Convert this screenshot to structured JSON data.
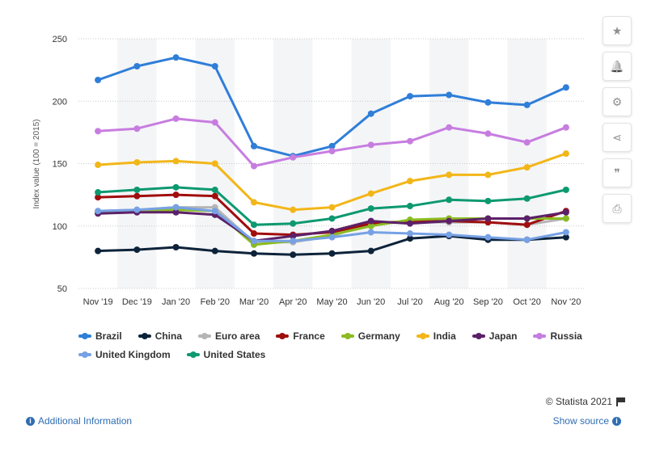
{
  "chart_data": {
    "type": "line",
    "title": "",
    "xlabel": "",
    "ylabel": "Index value (100 = 2015)",
    "categories": [
      "Nov '19",
      "Dec '19",
      "Jan '20",
      "Feb '20",
      "Mar '20",
      "Apr '20",
      "May '20",
      "Jun '20",
      "Jul '20",
      "Aug '20",
      "Sep '20",
      "Oct '20",
      "Nov '20"
    ],
    "ylim": [
      50,
      250
    ],
    "yticks": [
      50,
      100,
      150,
      200,
      250
    ],
    "grid": true,
    "legend_position": "bottom",
    "series": [
      {
        "name": "Brazil",
        "color": "#2f7ed8",
        "values": [
          217,
          228,
          235,
          228,
          164,
          156,
          164,
          190,
          204,
          205,
          199,
          197,
          211
        ]
      },
      {
        "name": "China",
        "color": "#0d233a",
        "values": [
          80,
          81,
          83,
          80,
          78,
          77,
          78,
          80,
          90,
          92,
          89,
          89,
          91
        ]
      },
      {
        "name": "Euro area",
        "color": "#b5b5b5",
        "values": [
          112,
          113,
          115,
          115,
          87,
          87,
          92,
          102,
          103,
          103,
          103,
          101,
          106
        ]
      },
      {
        "name": "France",
        "color": "#a00d0d",
        "values": [
          123,
          124,
          125,
          124,
          94,
          93,
          95,
          102,
          104,
          104,
          103,
          101,
          112
        ]
      },
      {
        "name": "Germany",
        "color": "#8bbc21",
        "values": [
          111,
          112,
          113,
          112,
          85,
          88,
          93,
          100,
          105,
          106,
          106,
          106,
          106
        ]
      },
      {
        "name": "India",
        "color": "#f2b619",
        "values": [
          149,
          151,
          152,
          150,
          119,
          113,
          115,
          126,
          136,
          141,
          141,
          147,
          158
        ]
      },
      {
        "name": "Japan",
        "color": "#5c2069",
        "values": [
          110,
          111,
          111,
          109,
          88,
          92,
          96,
          104,
          102,
          104,
          106,
          106,
          111
        ]
      },
      {
        "name": "Russia",
        "color": "#c77de0",
        "values": [
          176,
          178,
          186,
          183,
          148,
          155,
          160,
          165,
          168,
          179,
          174,
          167,
          179
        ]
      },
      {
        "name": "United Kingdom",
        "color": "#77a1e5",
        "values": [
          112,
          113,
          115,
          112,
          88,
          88,
          91,
          95,
          94,
          93,
          91,
          89,
          95
        ]
      },
      {
        "name": "United States",
        "color": "#0d9970",
        "values": [
          127,
          129,
          131,
          129,
          101,
          102,
          106,
          114,
          116,
          121,
          120,
          122,
          129
        ]
      }
    ]
  },
  "legend_rows": [
    [
      0,
      1,
      2,
      3,
      4,
      5,
      6,
      7
    ],
    [
      8,
      9
    ]
  ],
  "toolbar": [
    {
      "name": "favorite-button",
      "icon": "star-icon",
      "glyph": "★"
    },
    {
      "name": "notification-button",
      "icon": "bell-icon",
      "glyph": "🔔"
    },
    {
      "name": "settings-button",
      "icon": "gear-icon",
      "glyph": "⚙"
    },
    {
      "name": "share-button",
      "icon": "share-icon",
      "glyph": "⋖"
    },
    {
      "name": "cite-button",
      "icon": "quote-icon",
      "glyph": "❞"
    },
    {
      "name": "print-button",
      "icon": "print-icon",
      "glyph": "⎙"
    }
  ],
  "footer": {
    "credit": "© Statista 2021",
    "additional_info": "Additional Information",
    "show_source": "Show source"
  }
}
